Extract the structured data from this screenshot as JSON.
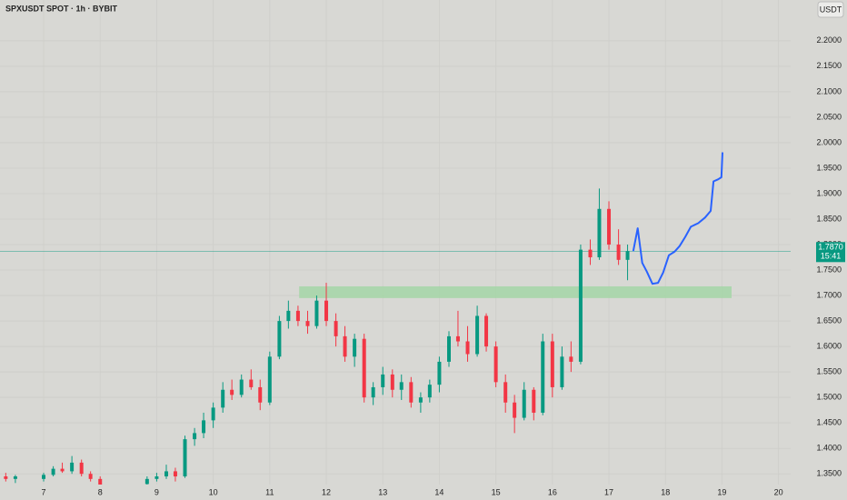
{
  "header": {
    "title": "SPXUSDT SPOT · 1h · BYBIT",
    "currency": "USDT"
  },
  "chart_data": {
    "type": "candlestick",
    "xlim": [
      6.228,
      20.215
    ],
    "ylim": [
      1.329,
      2.28
    ],
    "xticks": [
      7,
      8,
      9,
      10,
      11,
      12,
      13,
      14,
      15,
      16,
      17,
      18,
      19,
      20
    ],
    "yticks": [
      {
        "value": 1.35,
        "label": "1.3500"
      },
      {
        "value": 1.4,
        "label": "1.4000"
      },
      {
        "value": 1.45,
        "label": "1.4500"
      },
      {
        "value": 1.5,
        "label": "1.5000"
      },
      {
        "value": 1.55,
        "label": "1.5500"
      },
      {
        "value": 1.6,
        "label": "1.6000"
      },
      {
        "value": 1.65,
        "label": "1.6500"
      },
      {
        "value": 1.7,
        "label": "1.7000"
      },
      {
        "value": 1.75,
        "label": "1.7500"
      },
      {
        "value": 1.8,
        "label": "1.8000"
      },
      {
        "value": 1.85,
        "label": "1.8500"
      },
      {
        "value": 1.9,
        "label": "1.9000"
      },
      {
        "value": 1.95,
        "label": "1.9500"
      },
      {
        "value": 2.0,
        "label": "2.0000"
      },
      {
        "value": 2.05,
        "label": "2.0500"
      },
      {
        "value": 2.1,
        "label": "2.1000"
      },
      {
        "value": 2.15,
        "label": "2.1500"
      },
      {
        "value": 2.2,
        "label": "2.2000"
      }
    ],
    "up_color": "#089981",
    "down_color": "#f23645",
    "candles": {
      "x": [
        6.33,
        6.5,
        7.0,
        7.17,
        7.33,
        7.5,
        7.67,
        7.83,
        8.0,
        8.83,
        9.0,
        9.17,
        9.33,
        9.5,
        9.67,
        9.83,
        10.0,
        10.17,
        10.33,
        10.5,
        10.67,
        10.83,
        11.0,
        11.17,
        11.33,
        11.5,
        11.67,
        11.83,
        12.0,
        12.17,
        12.33,
        12.5,
        12.67,
        12.83,
        13.0,
        13.17,
        13.33,
        13.5,
        13.67,
        13.83,
        14.0,
        14.17,
        14.33,
        14.5,
        14.67,
        14.83,
        15.0,
        15.17,
        15.33,
        15.5,
        15.67,
        15.83,
        16.0,
        16.17,
        16.33,
        16.5,
        16.67,
        16.83,
        17.0,
        17.17,
        17.33
      ],
      "open": [
        1.345,
        1.34,
        1.34,
        1.348,
        1.36,
        1.355,
        1.372,
        1.35,
        1.34,
        1.33,
        1.34,
        1.345,
        1.355,
        1.345,
        1.418,
        1.43,
        1.455,
        1.48,
        1.515,
        1.505,
        1.535,
        1.52,
        1.49,
        1.58,
        1.65,
        1.67,
        1.65,
        1.64,
        1.69,
        1.65,
        1.62,
        1.58,
        1.615,
        1.5,
        1.52,
        1.545,
        1.515,
        1.53,
        1.49,
        1.5,
        1.525,
        1.57,
        1.62,
        1.61,
        1.585,
        1.66,
        1.6,
        1.53,
        1.49,
        1.46,
        1.515,
        1.47,
        1.61,
        1.52,
        1.58,
        1.57,
        1.79,
        1.775,
        1.87,
        1.8,
        1.77
      ],
      "high": [
        1.352,
        1.348,
        1.352,
        1.365,
        1.372,
        1.385,
        1.378,
        1.355,
        1.345,
        1.345,
        1.352,
        1.368,
        1.362,
        1.425,
        1.44,
        1.47,
        1.49,
        1.53,
        1.535,
        1.545,
        1.555,
        1.535,
        1.59,
        1.66,
        1.69,
        1.68,
        1.67,
        1.7,
        1.725,
        1.665,
        1.64,
        1.625,
        1.625,
        1.53,
        1.56,
        1.555,
        1.545,
        1.54,
        1.51,
        1.535,
        1.58,
        1.63,
        1.67,
        1.64,
        1.68,
        1.665,
        1.61,
        1.545,
        1.505,
        1.53,
        1.52,
        1.625,
        1.625,
        1.6,
        1.61,
        1.8,
        1.81,
        1.91,
        1.885,
        1.83,
        1.8
      ],
      "low": [
        1.335,
        1.332,
        1.335,
        1.345,
        1.352,
        1.35,
        1.345,
        1.335,
        1.32,
        1.325,
        1.335,
        1.34,
        1.335,
        1.342,
        1.405,
        1.42,
        1.44,
        1.47,
        1.495,
        1.5,
        1.515,
        1.475,
        1.485,
        1.575,
        1.635,
        1.64,
        1.625,
        1.635,
        1.64,
        1.6,
        1.57,
        1.56,
        1.49,
        1.485,
        1.505,
        1.5,
        1.495,
        1.48,
        1.47,
        1.49,
        1.51,
        1.56,
        1.6,
        1.57,
        1.58,
        1.59,
        1.52,
        1.47,
        1.43,
        1.455,
        1.455,
        1.465,
        1.5,
        1.515,
        1.55,
        1.565,
        1.76,
        1.77,
        1.79,
        1.76,
        1.73
      ],
      "close": [
        1.34,
        1.345,
        1.348,
        1.36,
        1.355,
        1.372,
        1.35,
        1.34,
        1.325,
        1.34,
        1.345,
        1.355,
        1.345,
        1.418,
        1.43,
        1.455,
        1.48,
        1.515,
        1.505,
        1.535,
        1.52,
        1.49,
        1.58,
        1.65,
        1.67,
        1.65,
        1.64,
        1.69,
        1.65,
        1.62,
        1.58,
        1.615,
        1.5,
        1.52,
        1.545,
        1.515,
        1.53,
        1.49,
        1.5,
        1.525,
        1.57,
        1.62,
        1.61,
        1.585,
        1.66,
        1.6,
        1.53,
        1.49,
        1.46,
        1.515,
        1.47,
        1.61,
        1.52,
        1.58,
        1.57,
        1.79,
        1.775,
        1.87,
        1.8,
        1.77,
        1.787
      ]
    },
    "zone": {
      "x": [
        11.52,
        19.17
      ],
      "y": [
        1.695,
        1.718
      ],
      "color": "#a5d6a7"
    },
    "forecast": {
      "color": "#2962ff",
      "x": [
        17.43,
        17.51,
        17.59,
        17.67,
        17.77,
        17.87,
        17.96,
        18.06,
        18.16,
        18.25,
        18.35,
        18.45,
        18.58,
        18.7,
        18.8,
        18.85,
        18.93,
        18.99,
        19.01
      ],
      "y": [
        1.787,
        1.832,
        1.764,
        1.747,
        1.723,
        1.725,
        1.745,
        1.779,
        1.786,
        1.797,
        1.815,
        1.835,
        1.842,
        1.853,
        1.866,
        1.924,
        1.928,
        1.932,
        1.981
      ]
    },
    "last_price": {
      "value": 1.787,
      "label": "1.7870",
      "countdown": "15:41",
      "color": "#089981"
    }
  }
}
